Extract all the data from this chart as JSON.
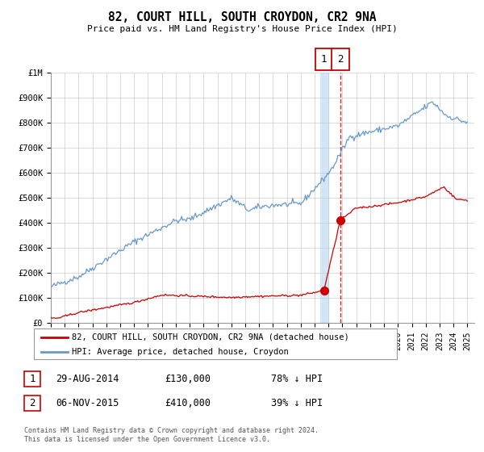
{
  "title": "82, COURT HILL, SOUTH CROYDON, CR2 9NA",
  "subtitle": "Price paid vs. HM Land Registry's House Price Index (HPI)",
  "legend_label_red": "82, COURT HILL, SOUTH CROYDON, CR2 9NA (detached house)",
  "legend_label_blue": "HPI: Average price, detached house, Croydon",
  "footer": "Contains HM Land Registry data © Crown copyright and database right 2024.\nThis data is licensed under the Open Government Licence v3.0.",
  "annotation1_date": "29-AUG-2014",
  "annotation1_price": "£130,000",
  "annotation1_hpi": "78% ↓ HPI",
  "annotation2_date": "06-NOV-2015",
  "annotation2_price": "£410,000",
  "annotation2_hpi": "39% ↓ HPI",
  "red_color": "#cc0000",
  "blue_color": "#6699cc",
  "vline1_color": "#aaccee",
  "vline2_color": "#cc0000",
  "vline1_x": 2014.667,
  "vline2_x": 2015.85,
  "point1_x": 2014.667,
  "point1_y": 130000,
  "point2_x": 2015.85,
  "point2_y": 410000,
  "ylim": [
    0,
    1000000
  ],
  "xlim": [
    1995,
    2025.5
  ],
  "background_color": "#ffffff",
  "grid_color": "#cccccc"
}
